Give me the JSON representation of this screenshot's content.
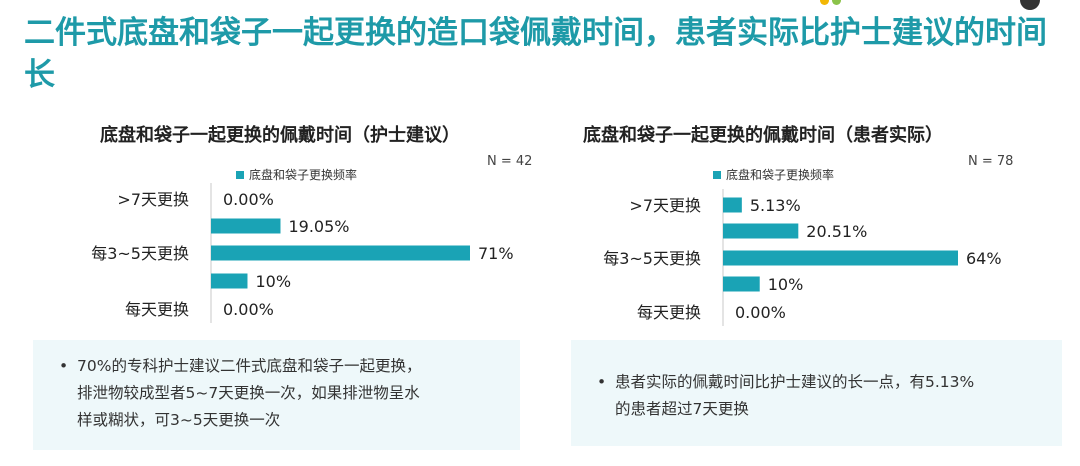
{
  "page": {
    "title": "二件式底盘和袋子一起更换的造口袋佩戴时间，患者实际比护士建议的时间长"
  },
  "colors": {
    "accent": "#1e9aa8",
    "bar": "#1aa3b5",
    "note_bg": "#eef8fa"
  },
  "chart_data": [
    {
      "type": "bar",
      "orientation": "horizontal",
      "title": "底盘和袋子一起更换的佩戴时间（护士建议）",
      "legend": "底盘和袋子更换频率",
      "n_label": "N = 42",
      "categories": [
        ">7天更换",
        "",
        "每3~5天更换",
        "",
        "每天更换"
      ],
      "values": [
        0.0,
        19.05,
        71,
        10,
        0.0
      ],
      "value_labels": [
        "0.00%",
        "19.05%",
        "71%",
        "10%",
        "0.00%"
      ],
      "xlim": [
        0,
        71
      ]
    },
    {
      "type": "bar",
      "orientation": "horizontal",
      "title": "底盘和袋子一起更换的佩戴时间（患者实际）",
      "legend": "底盘和袋子更换频率",
      "n_label": "N = 78",
      "categories": [
        ">7天更换",
        "",
        "每3~5天更换",
        "",
        "每天更换"
      ],
      "values": [
        5.13,
        20.51,
        64,
        10,
        0.0
      ],
      "value_labels": [
        "5.13%",
        "20.51%",
        "64%",
        "10%",
        "0.00%"
      ],
      "xlim": [
        0,
        64
      ]
    }
  ],
  "notes": [
    {
      "bullet": "•",
      "lines": [
        "70%的专科护士建议二件式底盘和袋子一起更换，",
        "排泄物较成型者5~7天更换一次，如果排泄物呈水",
        "样或糊状，可3~5天更换一次"
      ]
    },
    {
      "bullet": "•",
      "lines": [
        "患者实际的佩戴时间比护士建议的长一点，有5.13%",
        "的患者超过7天更换"
      ]
    }
  ]
}
